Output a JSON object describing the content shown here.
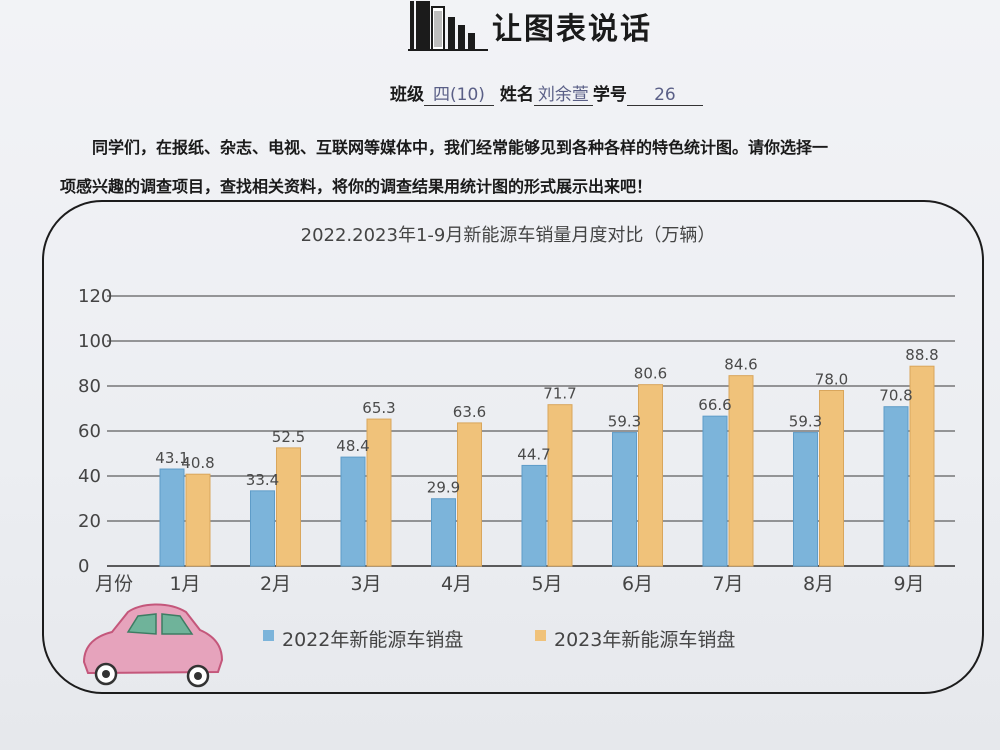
{
  "header": {
    "title": "让图表说话",
    "class_label": "班级",
    "class_value": "四(10)",
    "name_label": "姓名",
    "name_value": "刘余萱",
    "id_label": "学号",
    "id_value": "26"
  },
  "intro": {
    "line1": "同学们，在报纸、杂志、电视、互联网等媒体中，我们经常能够见到各种各样的特色统计图。请你选择一",
    "line2": "项感兴趣的调查项目，查找相关资料，将你的调查结果用统计图的形式展示出来吧！"
  },
  "colors": {
    "series_2022": "#7cb4da",
    "series_2023": "#f0c27a",
    "axis": "#2a2a2a",
    "gridline": "#3a3a3a",
    "label_text": "#444444"
  },
  "chart_data": {
    "type": "bar",
    "title": "2022.2023年1-9月新能源车销量月度对比（万辆）",
    "xlabel": "月份",
    "ylabel": "",
    "categories": [
      "1月",
      "2月",
      "3月",
      "4月",
      "5月",
      "6月",
      "7月",
      "8月",
      "9月"
    ],
    "series": [
      {
        "name": "2022年新能源车销盘",
        "values": [
          43.1,
          33.4,
          48.4,
          29.9,
          44.7,
          59.3,
          66.6,
          59.3,
          70.8
        ],
        "labels": [
          "43.1",
          "33.4",
          "48.4",
          "29.9",
          "44.7",
          "59.3",
          "66.6",
          "59.3",
          "70.8"
        ]
      },
      {
        "name": "2023年新能源车销盘",
        "values": [
          40.8,
          52.5,
          65.3,
          63.6,
          71.7,
          80.6,
          84.6,
          78.0,
          88.8
        ],
        "labels": [
          "40.8",
          "52.5",
          "65.3",
          "63.6",
          "71.7",
          "80.6",
          "84.6",
          "78.0",
          "88.8"
        ]
      }
    ],
    "ylim": [
      0,
      120
    ],
    "yticks": [
      0,
      20,
      40,
      60,
      80,
      100,
      120
    ],
    "grid": true,
    "legend": "bottom"
  }
}
